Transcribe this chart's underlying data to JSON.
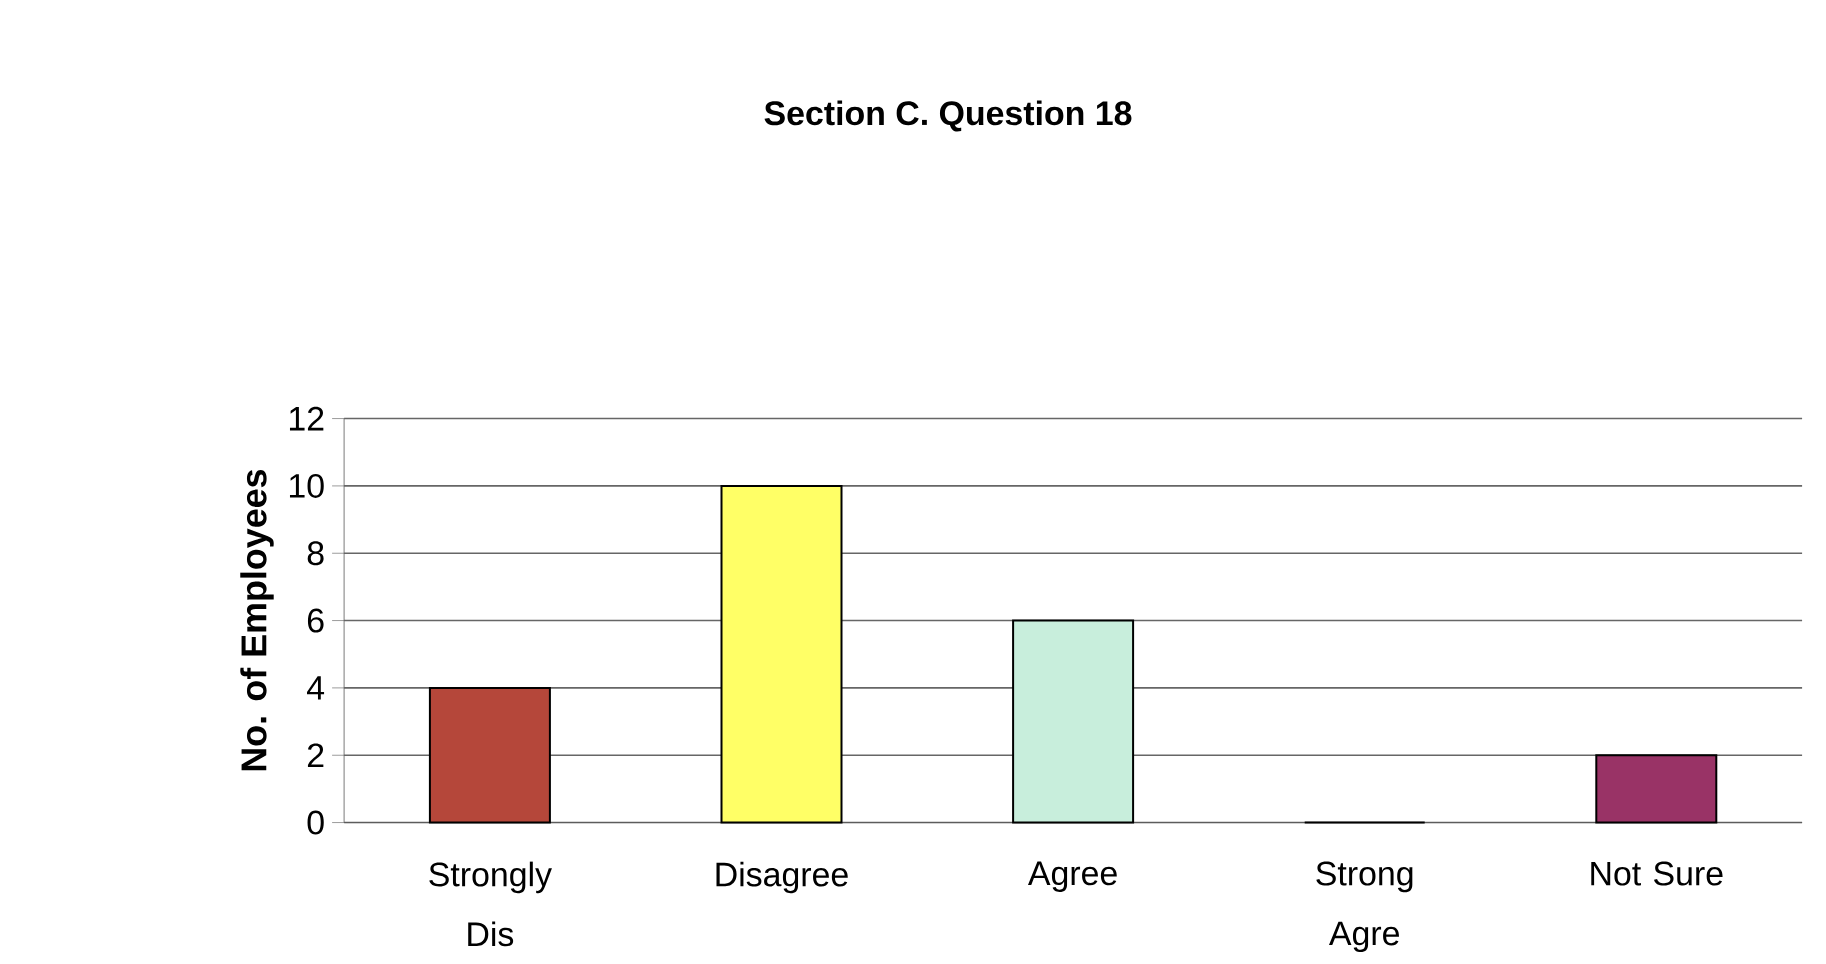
{
  "chart_data": {
    "type": "bar",
    "title": "Section C. Question 18",
    "ylabel": "No. of Employees",
    "categories": [
      "Strongly Dis",
      "Disagree",
      "Agree",
      "Strong Agre",
      "Not Sure"
    ],
    "values": [
      4,
      10,
      6,
      0,
      2
    ],
    "colors": [
      "#b5473a",
      "#ffff66",
      "#c8eedc",
      "#ffffff",
      "#993366"
    ],
    "ylim": [
      0,
      12
    ],
    "yticks": [
      0,
      2,
      4,
      6,
      8,
      10,
      12
    ],
    "grid": "y"
  }
}
